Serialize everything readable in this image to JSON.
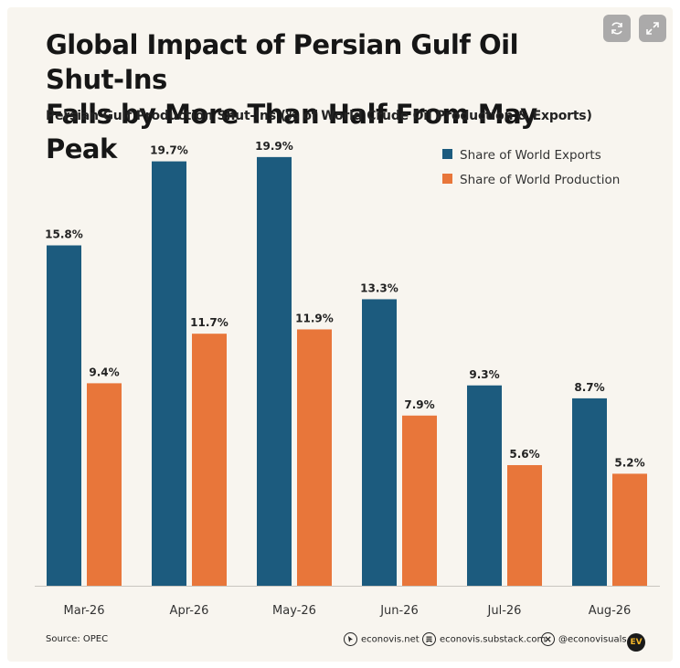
{
  "header": {
    "title_line1": "Global Impact of Persian Gulf Oil Shut-Ins",
    "title_line2": "Falls by More Than Half From May Peak",
    "subtitle": "Persian Gulf Production Shut-Ins (% of World Crude Oil Production & Exports)"
  },
  "controls": {
    "refresh_icon": "refresh-icon",
    "expand_icon": "expand-icon"
  },
  "colors": {
    "exports": "#1c5b7e",
    "production": "#e8763a",
    "background": "#f8f5ef"
  },
  "chart_data": {
    "type": "bar",
    "categories": [
      "Mar-26",
      "Apr-26",
      "May-26",
      "Jun-26",
      "Jul-26",
      "Aug-26"
    ],
    "series": [
      {
        "name": "Share of World Exports",
        "values": [
          15.8,
          19.7,
          19.9,
          13.3,
          9.3,
          8.7
        ],
        "labels": [
          "15.8%",
          "19.7%",
          "19.9%",
          "13.3%",
          "9.3%",
          "8.7%"
        ]
      },
      {
        "name": "Share of World Production",
        "values": [
          9.4,
          11.7,
          11.9,
          7.9,
          5.6,
          5.2
        ],
        "labels": [
          "9.4%",
          "11.7%",
          "11.9%",
          "7.9%",
          "5.6%",
          "5.2%"
        ]
      }
    ],
    "ylim": [
      0,
      23.5
    ],
    "grid": false,
    "legend": "top-right"
  },
  "footer": {
    "source": "Source: OPEC",
    "website": "econovis.net",
    "substack": "econovis.substack.com",
    "handle": "@econovisuals",
    "logo": "EV"
  }
}
